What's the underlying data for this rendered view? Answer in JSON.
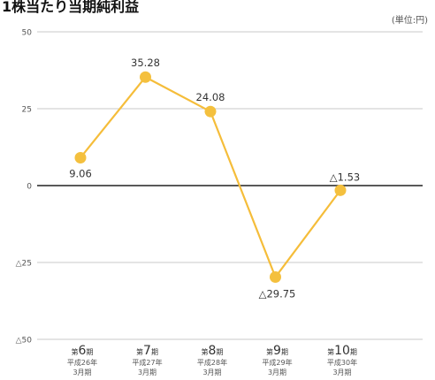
{
  "title": "1株当たり当期純利益",
  "unit_label": "(単位:円)",
  "colors": {
    "series": "#f5bd3a",
    "marker": "#f4c03e",
    "zero_line": "#222222",
    "grid": "#c8c8c8",
    "text": "#333333",
    "tick_text": "#555555"
  },
  "chart_data": {
    "type": "line",
    "title": "1株当たり当期純利益",
    "xlabel": "",
    "ylabel": "",
    "unit": "(単位:円)",
    "ylim": [
      -50,
      50
    ],
    "yticks": [
      50,
      25,
      0,
      -25,
      -50
    ],
    "ytick_labels": [
      "50",
      "25",
      "0",
      "△25",
      "△50"
    ],
    "grid": true,
    "legend": "none",
    "categories": [
      {
        "pre": "第",
        "num": "6",
        "post": "期",
        "year": "平成26年",
        "month": "3月期"
      },
      {
        "pre": "第",
        "num": "7",
        "post": "期",
        "year": "平成27年",
        "month": "3月期"
      },
      {
        "pre": "第",
        "num": "8",
        "post": "期",
        "year": "平成28年",
        "month": "3月期"
      },
      {
        "pre": "第",
        "num": "9",
        "post": "期",
        "year": "平成29年",
        "month": "3月期"
      },
      {
        "pre": "第",
        "num": "10",
        "post": "期",
        "year": "平成30年",
        "month": "3月期"
      }
    ],
    "values": [
      9.06,
      35.28,
      24.08,
      -29.75,
      -1.53
    ],
    "data_labels": [
      "9.06",
      "35.28",
      "24.08",
      "△29.75",
      "△1.53"
    ]
  }
}
